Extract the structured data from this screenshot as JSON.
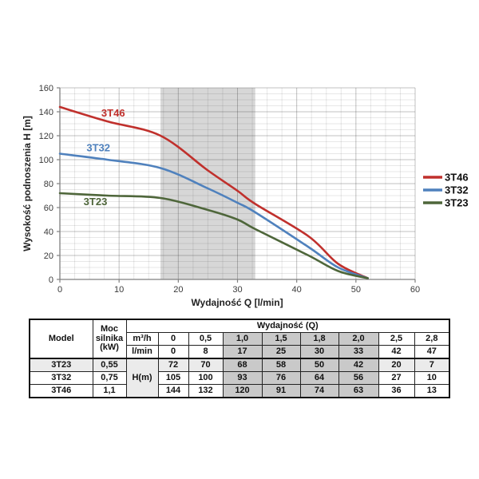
{
  "chart_data": {
    "type": "line",
    "title": "",
    "x_axis": {
      "label": "Wydajność Q [l/min]",
      "min": 0,
      "max": 60,
      "major_step": 10,
      "minor_step": 2.5,
      "ticks": [
        0,
        10,
        20,
        30,
        40,
        50,
        60
      ]
    },
    "y_axis": {
      "label": "Wysokość podnoszenia H [m]",
      "min": 0,
      "max": 160,
      "major_step": 20,
      "minor_step": 5,
      "ticks": [
        0,
        20,
        40,
        60,
        80,
        100,
        120,
        140,
        160
      ]
    },
    "grid": true,
    "highlight_band": {
      "x_start": 17,
      "x_end": 33,
      "color": "#d7d7d7"
    },
    "x": [
      0,
      8,
      17,
      25,
      30,
      33,
      42,
      47,
      52
    ],
    "series": [
      {
        "name": "3T46",
        "color": "#c0302c",
        "values": [
          144,
          132,
          120,
          91,
          74,
          63,
          36,
          13,
          1
        ],
        "label_at": {
          "x": 9,
          "y": 136
        }
      },
      {
        "name": "3T32",
        "color": "#4f81bd",
        "values": [
          105,
          100,
          93,
          76,
          64,
          56,
          27,
          10,
          1
        ],
        "label_at": {
          "x": 6.5,
          "y": 107
        }
      },
      {
        "name": "3T23",
        "color": "#4e663a",
        "values": [
          72,
          70,
          68,
          58,
          50,
          42,
          20,
          7,
          1
        ],
        "label_at": {
          "x": 6,
          "y": 62
        }
      }
    ],
    "legend": {
      "position": "right",
      "entries": [
        "3T46",
        "3T32",
        "3T23"
      ]
    }
  },
  "table": {
    "header": {
      "model": "Model",
      "power": "Moc silnika (kW)",
      "flow_group": "Wydajność (Q)",
      "unit_m3h": "m³/h",
      "unit_lmin": "l/min",
      "head_unit": "H(m)",
      "m3h_values": [
        "0",
        "0,5",
        "1,0",
        "1,5",
        "1,8",
        "2,0",
        "2,5",
        "2,8"
      ],
      "lmin_values": [
        "0",
        "8",
        "17",
        "25",
        "30",
        "33",
        "42",
        "47"
      ]
    },
    "shaded_value_columns": [
      2,
      3,
      4,
      5
    ],
    "rows": [
      {
        "model": "3T23",
        "power": "0,55",
        "head_values": [
          "72",
          "70",
          "68",
          "58",
          "50",
          "42",
          "20",
          "7"
        ],
        "row_shaded": true
      },
      {
        "model": "3T32",
        "power": "0,75",
        "head_values": [
          "105",
          "100",
          "93",
          "76",
          "64",
          "56",
          "27",
          "10"
        ],
        "row_shaded": false
      },
      {
        "model": "3T46",
        "power": "1,1",
        "head_values": [
          "144",
          "132",
          "120",
          "91",
          "74",
          "63",
          "36",
          "13"
        ],
        "row_shaded": false
      }
    ]
  },
  "colors": {
    "band": "#d7d7d7",
    "axis": "#808080",
    "shaded_cell": "#c9c9c9",
    "shaded_row": "#ebebeb"
  }
}
